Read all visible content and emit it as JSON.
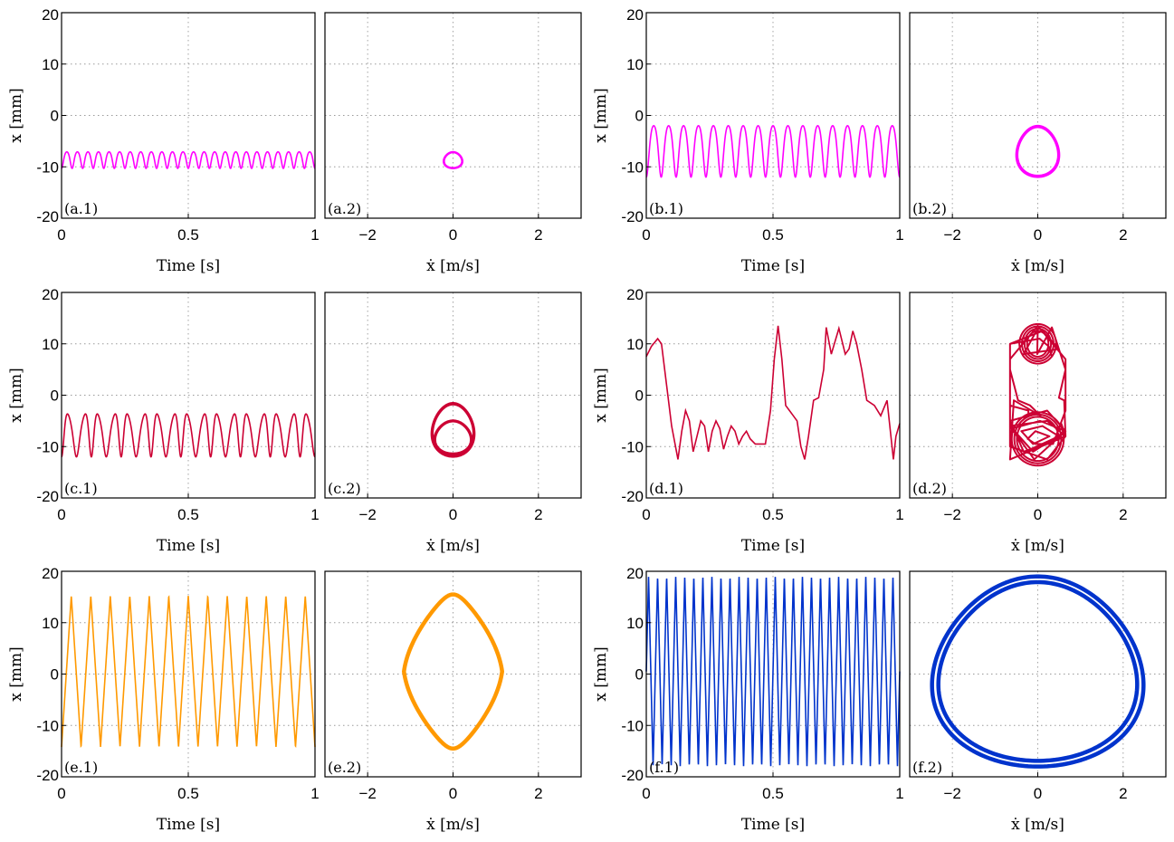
{
  "chart_data": [
    {
      "panel": "a",
      "type": "line",
      "time_label": "(a.1)",
      "phase_label": "(a.2)",
      "xlabel_time": "Time [s]",
      "xlabel_phase": "ẋ [m/s]",
      "ylabel": "x [mm]",
      "color": "#ff00ff",
      "cycles": 24,
      "x_min_mm": -10.3,
      "x_max_mm": -7.1,
      "velocity_amplitude_ms": 0.22,
      "time_xlim": [
        0,
        1
      ],
      "phase_xlim": [
        -3,
        3
      ],
      "ylim": [
        -20,
        20
      ]
    },
    {
      "panel": "b",
      "type": "line",
      "time_label": "(b.1)",
      "phase_label": "(b.2)",
      "xlabel_time": "Time [s]",
      "xlabel_phase": "ẋ [m/s]",
      "ylabel": "x [mm]",
      "color": "#ff00ff",
      "cycles": 17,
      "x_min_mm": -12,
      "x_max_mm": -2,
      "velocity_amplitude_ms": 0.5,
      "time_xlim": [
        0,
        1
      ],
      "phase_xlim": [
        -3,
        3
      ],
      "ylim": [
        -20,
        20
      ]
    },
    {
      "panel": "c",
      "type": "line",
      "time_label": "(c.1)",
      "phase_label": "(c.2)",
      "xlabel_time": "Time [s]",
      "xlabel_phase": "ẋ [m/s]",
      "ylabel": "x [mm]",
      "color": "#cc0033",
      "cycles": 17,
      "x_min_mm": -12,
      "x_max_mm": -1.5,
      "velocity_amplitude_ms": 0.5,
      "time_xlim": [
        0,
        1
      ],
      "phase_xlim": [
        -3,
        3
      ],
      "ylim": [
        -20,
        20
      ]
    },
    {
      "panel": "d",
      "type": "line",
      "time_label": "(d.1)",
      "phase_label": "(d.2)",
      "xlabel_time": "Time [s]",
      "xlabel_phase": "ẋ [m/s]",
      "ylabel": "x [mm]",
      "color": "#cc0033",
      "time_samples": [
        [
          0,
          7.5
        ],
        [
          0.02,
          9.5
        ],
        [
          0.045,
          11
        ],
        [
          0.06,
          10
        ],
        [
          0.08,
          2
        ],
        [
          0.1,
          -6
        ],
        [
          0.125,
          -12.5
        ],
        [
          0.14,
          -7
        ],
        [
          0.155,
          -3
        ],
        [
          0.17,
          -5
        ],
        [
          0.185,
          -11
        ],
        [
          0.2,
          -8
        ],
        [
          0.215,
          -5
        ],
        [
          0.23,
          -6
        ],
        [
          0.245,
          -11
        ],
        [
          0.26,
          -7
        ],
        [
          0.275,
          -5
        ],
        [
          0.29,
          -6.5
        ],
        [
          0.305,
          -10.5
        ],
        [
          0.32,
          -8
        ],
        [
          0.335,
          -6
        ],
        [
          0.35,
          -7
        ],
        [
          0.365,
          -9.5
        ],
        [
          0.38,
          -8
        ],
        [
          0.395,
          -7
        ],
        [
          0.41,
          -8.5
        ],
        [
          0.43,
          -9.5
        ],
        [
          0.47,
          -9.5
        ],
        [
          0.49,
          -3
        ],
        [
          0.505,
          7
        ],
        [
          0.52,
          13.5
        ],
        [
          0.535,
          7
        ],
        [
          0.55,
          -2
        ],
        [
          0.565,
          -3
        ],
        [
          0.58,
          -4
        ],
        [
          0.595,
          -5
        ],
        [
          0.61,
          -10
        ],
        [
          0.625,
          -12.5
        ],
        [
          0.64,
          -8
        ],
        [
          0.66,
          -1
        ],
        [
          0.68,
          -0.5
        ],
        [
          0.7,
          5
        ],
        [
          0.71,
          13.2
        ],
        [
          0.73,
          8
        ],
        [
          0.76,
          13
        ],
        [
          0.785,
          8
        ],
        [
          0.8,
          9
        ],
        [
          0.815,
          12.5
        ],
        [
          0.83,
          10
        ],
        [
          0.85,
          5
        ],
        [
          0.87,
          -1
        ],
        [
          0.9,
          -2
        ],
        [
          0.925,
          -4
        ],
        [
          0.95,
          -1
        ],
        [
          0.975,
          -12.5
        ],
        [
          0.985,
          -8
        ],
        [
          1,
          -5.5
        ]
      ],
      "time_xlim": [
        0,
        1
      ],
      "phase_xlim": [
        -3,
        3
      ],
      "ylim": [
        -20,
        20
      ]
    },
    {
      "panel": "e",
      "type": "line",
      "time_label": "(e.1)",
      "phase_label": "(e.2)",
      "xlabel_time": "Time [s]",
      "xlabel_phase": "ẋ [m/s]",
      "ylabel": "x [mm]",
      "color": "#ff9900",
      "cycles": 13,
      "x_min_mm": -14.5,
      "x_max_mm": 15.5,
      "velocity_amplitude_ms": 1.0,
      "time_xlim": [
        0,
        1
      ],
      "phase_xlim": [
        -3,
        3
      ],
      "ylim": [
        -20,
        20
      ]
    },
    {
      "panel": "f",
      "type": "line",
      "time_label": "(f.1)",
      "phase_label": "(f.2)",
      "xlabel_time": "Time [s]",
      "xlabel_phase": "ẋ [m/s]",
      "ylabel": "x [mm]",
      "color": "#0033cc",
      "cycles": 28,
      "x_min_mm": -18,
      "x_max_mm": 19,
      "velocity_amplitude_ms": 2.45,
      "time_xlim": [
        0,
        1
      ],
      "phase_xlim": [
        -3,
        3
      ],
      "ylim": [
        -20,
        20
      ]
    }
  ],
  "tick_labels": {
    "y": [
      "20",
      "10",
      "0",
      "-10",
      "-20"
    ],
    "time_x": [
      "0",
      "0.5",
      "1"
    ],
    "phase_x": [
      "−2",
      "0",
      "2"
    ]
  }
}
